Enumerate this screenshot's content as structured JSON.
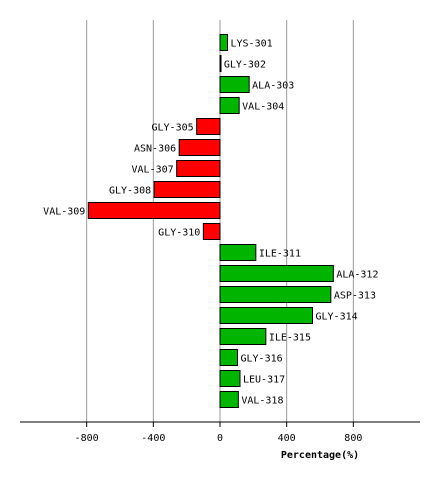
{
  "chart_data": {
    "type": "bar",
    "orientation": "horizontal",
    "title": "",
    "xlabel": "Percentage(%)",
    "ylabel": "",
    "xlim": [
      -1200,
      1200
    ],
    "xticks": [
      -800,
      -400,
      0,
      400,
      800
    ],
    "grid": true,
    "legend": "none",
    "categories": [
      "LYS-301",
      "GLY-302",
      "ALA-303",
      "VAL-304",
      "GLY-305",
      "ASN-306",
      "VAL-307",
      "GLY-308",
      "VAL-309",
      "GLY-310",
      "ILE-311",
      "ALA-312",
      "ASP-313",
      "GLY-314",
      "ILE-315",
      "GLY-316",
      "LEU-317",
      "VAL-318"
    ],
    "values": [
      45,
      5,
      175,
      115,
      -140,
      -245,
      -260,
      -395,
      -790,
      -100,
      215,
      680,
      665,
      555,
      275,
      105,
      120,
      110
    ],
    "colors": {
      "positive": "#00b400",
      "negative": "#ff0000",
      "outline": "#000000",
      "grid": "#999999"
    }
  }
}
